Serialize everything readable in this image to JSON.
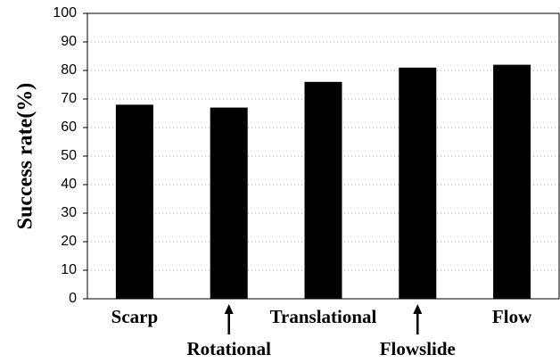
{
  "chart_data": {
    "type": "bar",
    "y_label": "Success rate(%)",
    "categories": [
      "Scarp",
      "Rotational",
      "Translational",
      "Flowslide",
      "Flow"
    ],
    "values": [
      68,
      67,
      76,
      81,
      82
    ],
    "color": "#000000",
    "ylim": [
      0,
      100
    ],
    "yticks": [
      0,
      10,
      20,
      30,
      40,
      50,
      60,
      70,
      80,
      90,
      100
    ],
    "grid": true
  }
}
